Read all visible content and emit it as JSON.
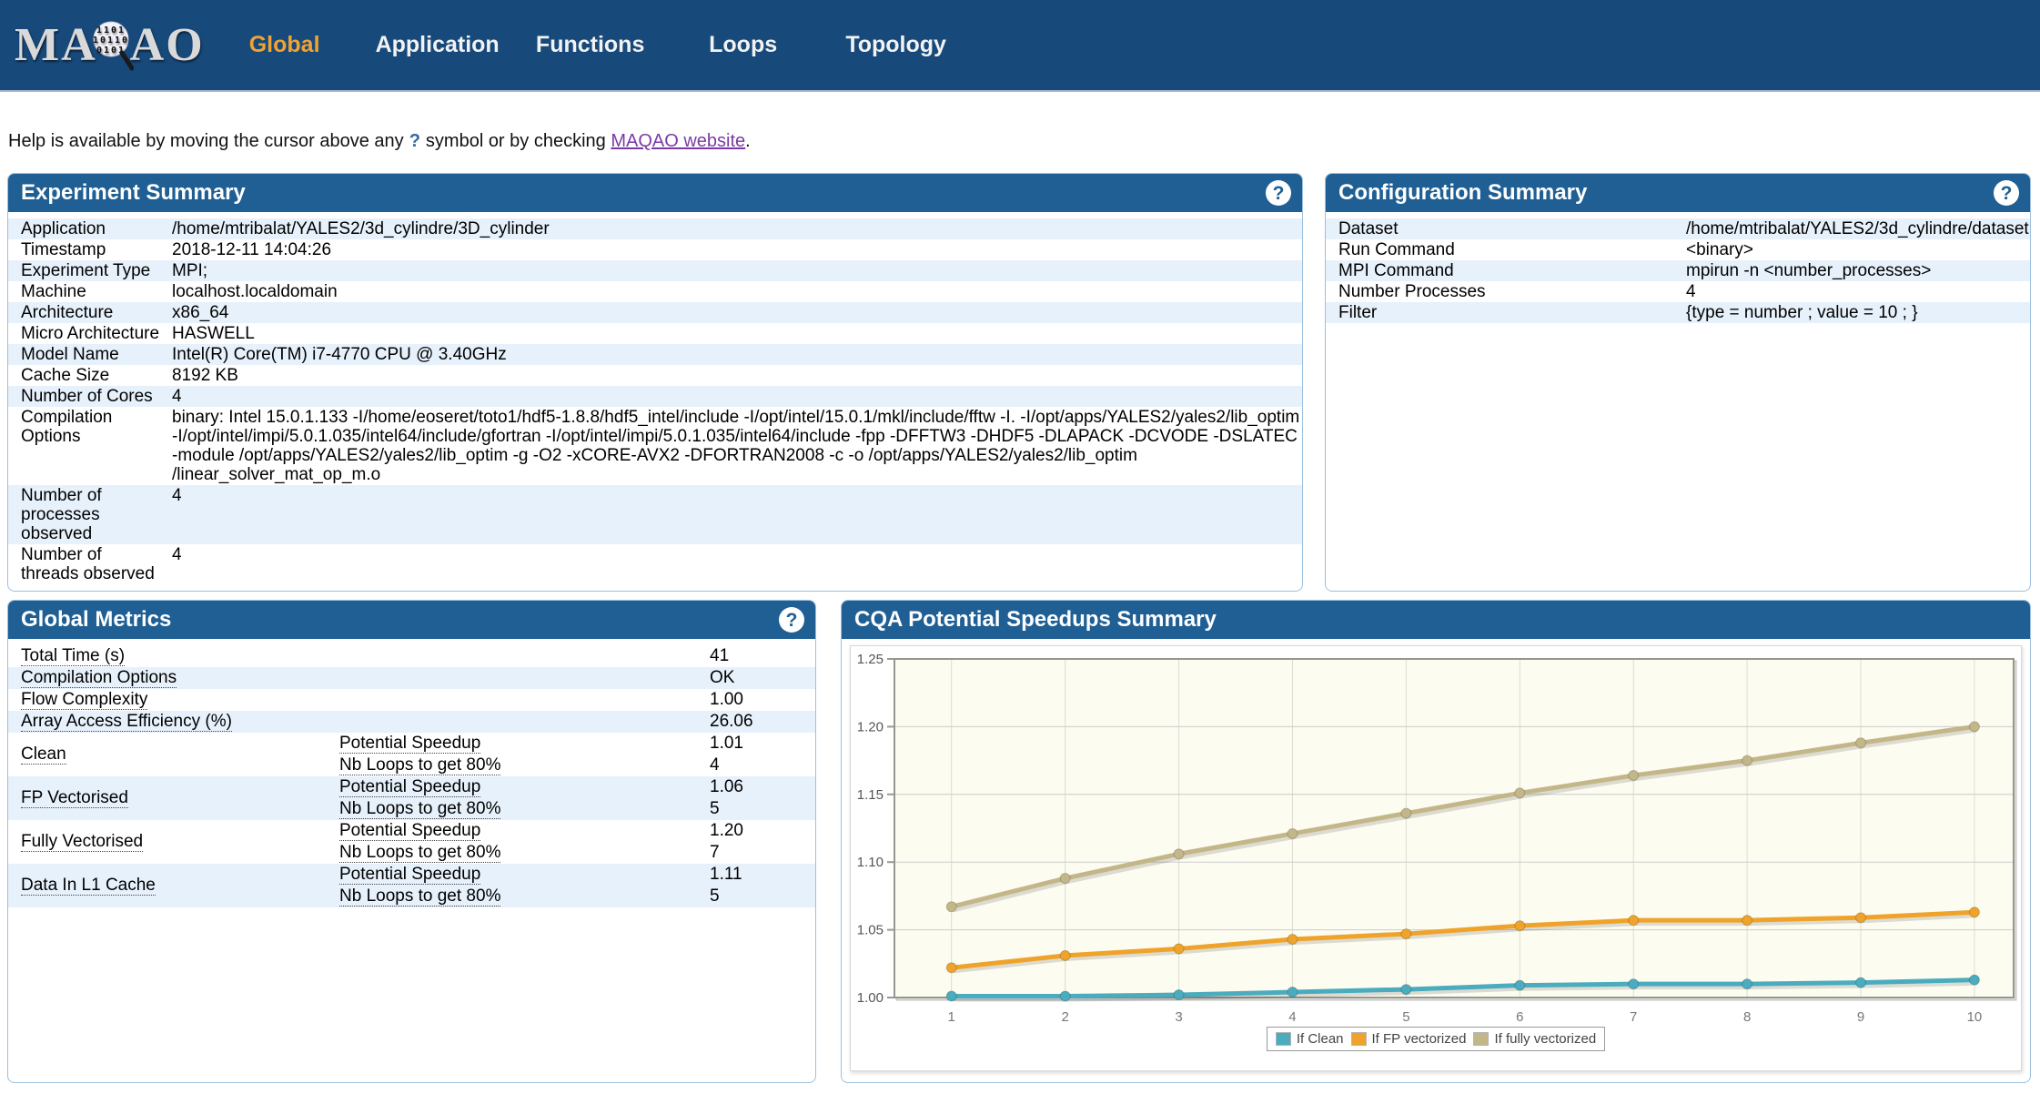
{
  "colors": {
    "navbar_bg": "#17497b",
    "header_blue": "#1f5f94",
    "accent_orange": "#f0a232",
    "row_stripe": "#e7f1fb",
    "metric_green": "#7cdf00",
    "metric_orange": "#f39000",
    "metric_peach": "#fbc383",
    "series_clean": "#4aacbe",
    "series_fp": "#efa32a",
    "series_fully": "#c3b789"
  },
  "navbar": {
    "logo": {
      "prefix": "MA",
      "suffix": "AO",
      "binary_lines": [
        "1101",
        "10110",
        "0101"
      ]
    },
    "items": [
      {
        "label": "Global",
        "active": true
      },
      {
        "label": "Application",
        "active": false
      },
      {
        "label": "Functions",
        "active": false
      },
      {
        "label": "Loops",
        "active": false
      },
      {
        "label": "Topology",
        "active": false
      }
    ]
  },
  "help": {
    "before": "Help is available by moving the cursor above any",
    "question_mark": "?",
    "middle": "symbol or by checking",
    "link": "MAQAO website",
    "after": "."
  },
  "panels": {
    "experiment": {
      "title": "Experiment Summary",
      "help_icon": "?",
      "rows": [
        {
          "label": "Application",
          "value": "/home/mtribalat/YALES2/3d_cylindre/3D_cylinder"
        },
        {
          "label": "Timestamp",
          "value": "2018-12-11 14:04:26"
        },
        {
          "label": "Experiment Type",
          "value": "MPI;"
        },
        {
          "label": "Machine",
          "value": "localhost.localdomain"
        },
        {
          "label": "Architecture",
          "value": "x86_64"
        },
        {
          "label": "Micro Architecture",
          "value": "HASWELL"
        },
        {
          "label": "Model Name",
          "value": "Intel(R) Core(TM) i7-4770 CPU @ 3.40GHz"
        },
        {
          "label": "Cache Size",
          "value": "8192 KB"
        },
        {
          "label": "Number of Cores",
          "value": "4"
        },
        {
          "label": "Compilation Options",
          "value": "binary: Intel 15.0.1.133 -I/home/eoseret/toto1/hdf5-1.8.8/hdf5_intel/include -I/opt/intel/15.0.1/mkl/include/fftw -I. -I/opt/apps/YALES2/yales2/lib_optim -I/opt/intel/impi/5.0.1.035/intel64/include/gfortran -I/opt/intel/impi/5.0.1.035/intel64/include -fpp -DFFTW3 -DHDF5 -DLAPACK -DCVODE -DSLATEC -module /opt/apps/YALES2/yales2/lib_optim -g -O2 -xCORE-AVX2 -DFORTRAN2008 -c -o /opt/apps/YALES2/yales2/lib_optim /linear_solver_mat_op_m.o"
        },
        {
          "label": "Number of processes observed",
          "value": "4"
        },
        {
          "label": "Number of threads observed",
          "value": "4"
        }
      ]
    },
    "configuration": {
      "title": "Configuration Summary",
      "help_icon": "?",
      "rows": [
        {
          "label": "Dataset",
          "value": "/home/mtribalat/YALES2/3d_cylindre/dataset"
        },
        {
          "label": "Run Command",
          "value": "<binary>"
        },
        {
          "label": "MPI Command",
          "value": "mpirun -n <number_processes>"
        },
        {
          "label": "Number Processes",
          "value": "4"
        },
        {
          "label": "Filter",
          "value": "{type = number ; value = 10 ; }"
        }
      ]
    },
    "global_metrics": {
      "title": "Global Metrics",
      "help_icon": "?",
      "simple_rows": [
        {
          "label": "Total Time (s)",
          "value": "41",
          "color": null
        },
        {
          "label": "Compilation Options",
          "value": "OK",
          "color": "green"
        },
        {
          "label": "Flow Complexity",
          "value": "1.00",
          "color": "green"
        },
        {
          "label": "Array Access Efficiency (%)",
          "value": "26.06",
          "color": "orange"
        }
      ],
      "group_rows": [
        {
          "label": "Clean",
          "subs": [
            {
              "label": "Potential Speedup",
              "value": "1.01",
              "color": "green"
            },
            {
              "label": "Nb Loops to get 80%",
              "value": "4",
              "color": null
            }
          ]
        },
        {
          "label": "FP Vectorised",
          "subs": [
            {
              "label": "Potential Speedup",
              "value": "1.06",
              "color": "green"
            },
            {
              "label": "Nb Loops to get 80%",
              "value": "5",
              "color": null
            }
          ]
        },
        {
          "label": "Fully Vectorised",
          "subs": [
            {
              "label": "Potential Speedup",
              "value": "1.20",
              "color": "peach"
            },
            {
              "label": "Nb Loops to get 80%",
              "value": "7",
              "color": null
            }
          ]
        },
        {
          "label": "Data In L1 Cache",
          "subs": [
            {
              "label": "Potential Speedup",
              "value": "1.11",
              "color": "peach"
            },
            {
              "label": "Nb Loops to get 80%",
              "value": "5",
              "color": null
            }
          ]
        }
      ]
    },
    "cqa": {
      "title": "CQA Potential Speedups Summary"
    }
  },
  "chart_data": {
    "type": "line",
    "x": [
      1,
      2,
      3,
      4,
      5,
      6,
      7,
      8,
      9,
      10
    ],
    "series": [
      {
        "name": "If Clean",
        "color_key": "series_clean",
        "values": [
          1.001,
          1.001,
          1.002,
          1.004,
          1.006,
          1.009,
          1.01,
          1.01,
          1.011,
          1.013
        ]
      },
      {
        "name": "If FP vectorized",
        "color_key": "series_fp",
        "values": [
          1.022,
          1.031,
          1.036,
          1.043,
          1.047,
          1.053,
          1.057,
          1.057,
          1.059,
          1.063
        ]
      },
      {
        "name": "If fully vectorized",
        "color_key": "series_fully",
        "values": [
          1.067,
          1.088,
          1.106,
          1.121,
          1.136,
          1.151,
          1.164,
          1.175,
          1.188,
          1.2
        ]
      }
    ],
    "title": "CQA Potential Speedups Summary",
    "xlabel": "",
    "ylabel": "",
    "ylim": [
      1.0,
      1.25
    ],
    "yticks": [
      "1.00",
      "1.05",
      "1.10",
      "1.15",
      "1.20",
      "1.25"
    ],
    "grid": true,
    "legend_position": "bottom-center"
  }
}
